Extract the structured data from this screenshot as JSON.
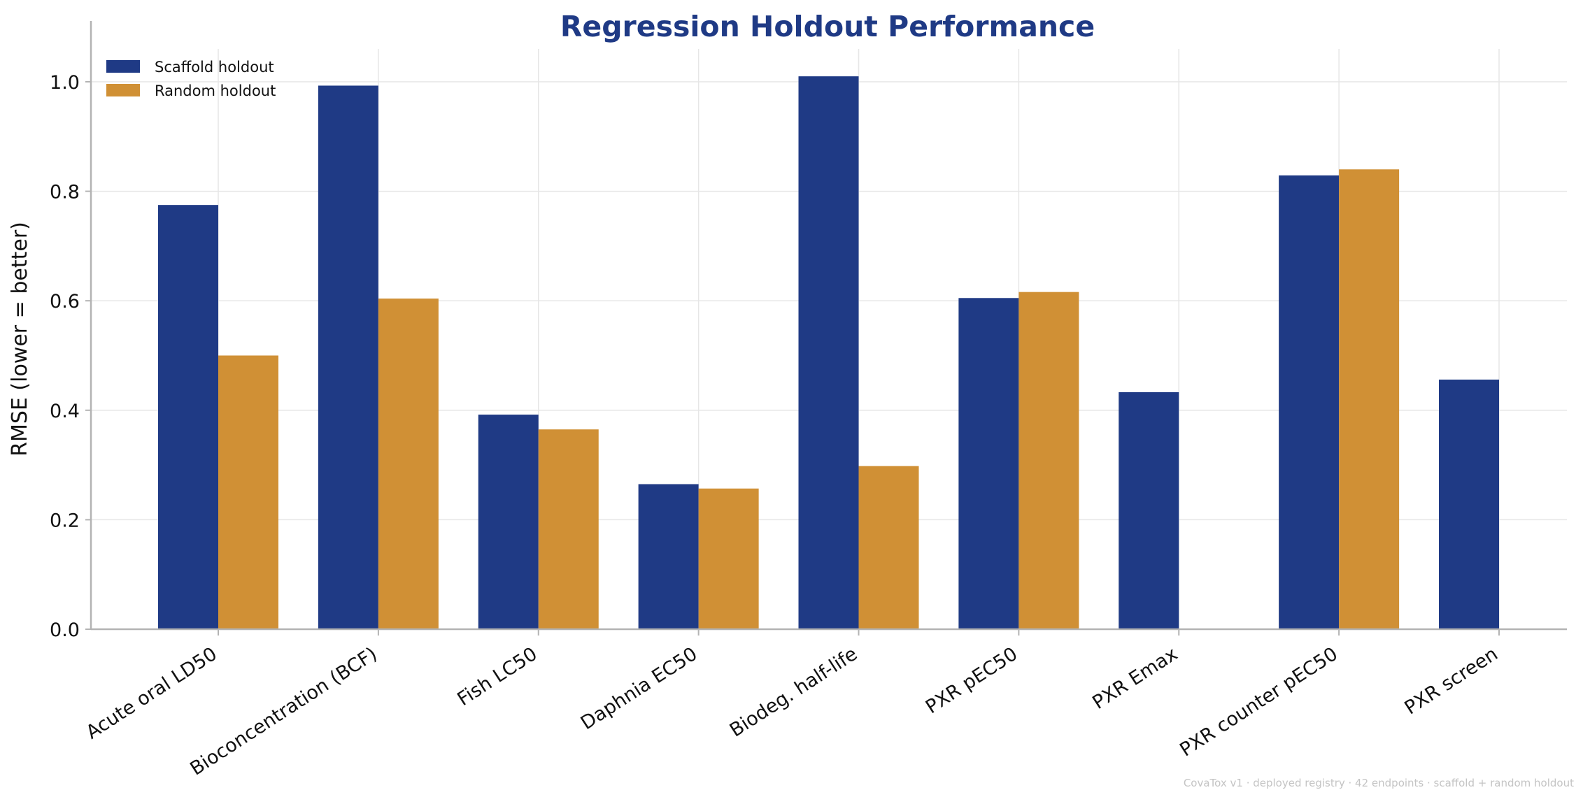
{
  "chart_data": {
    "type": "bar",
    "title": "Regression Holdout Performance",
    "xlabel": "",
    "ylabel": "RMSE  (lower = better)",
    "ylim": [
      0,
      1.06
    ],
    "yticks": [
      "0.0",
      "0.2",
      "0.4",
      "0.6",
      "0.8",
      "1.0"
    ],
    "grid": true,
    "legend_position": "top-left",
    "categories": [
      "Acute oral LD50",
      "Bioconcentration (BCF)",
      "Fish LC50",
      "Daphnia EC50",
      "Biodeg. half-life",
      "PXR pEC50",
      "PXR Emax",
      "PXR counter pEC50",
      "PXR screen"
    ],
    "series": [
      {
        "name": "Scaffold holdout",
        "color": "#1f3a85",
        "values": [
          0.775,
          0.993,
          0.392,
          0.265,
          1.01,
          0.605,
          0.433,
          0.829,
          0.456
        ]
      },
      {
        "name": "Random holdout",
        "color": "#d09035",
        "values": [
          0.5,
          0.604,
          0.365,
          0.257,
          0.298,
          0.616,
          null,
          0.84,
          null
        ]
      }
    ],
    "footnote": "CovaTox v1 · deployed registry · 42 endpoints · scaffold + random holdout",
    "colors": {
      "title": "#1f3a85",
      "grid": "#e6e6e6",
      "axis": "#b3b3b3"
    }
  }
}
